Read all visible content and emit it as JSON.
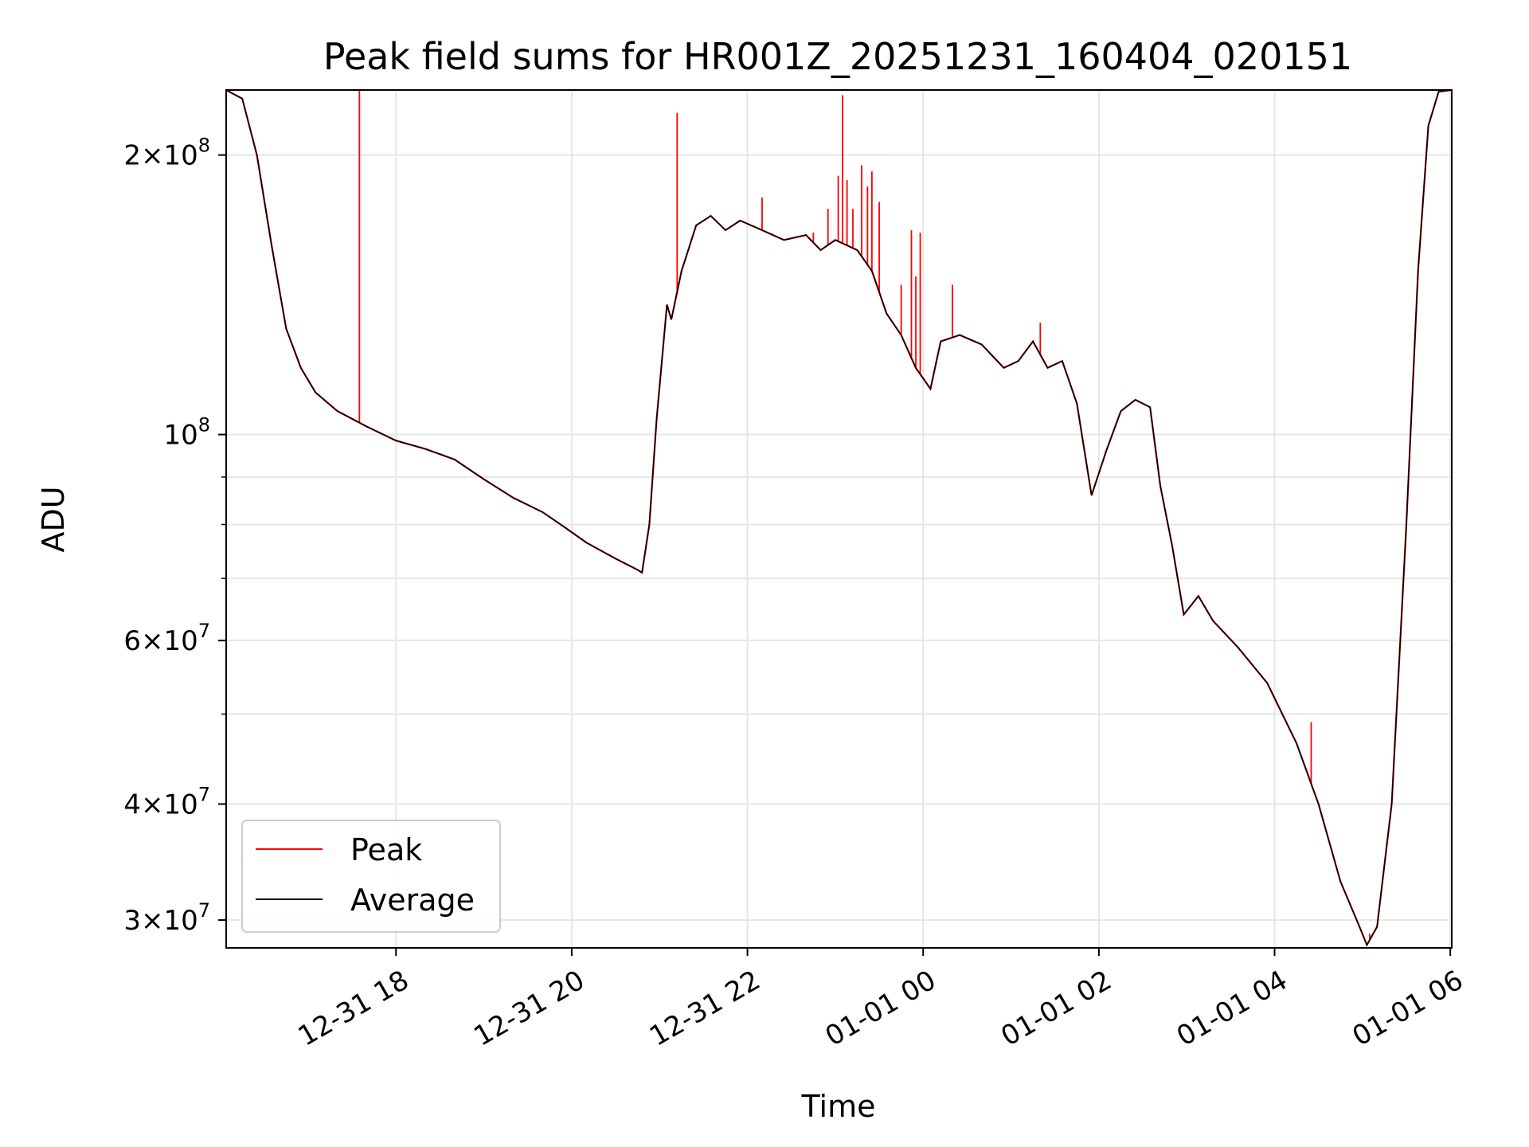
{
  "chart_data": {
    "type": "line",
    "title": "Peak field sums for HR001Z_20251231_160404_020151",
    "xlabel": "Time",
    "ylabel": "ADU",
    "y_scale": "log",
    "ylim": [
      28000000,
      235000000
    ],
    "xlim": [
      "2025-12-31 16:04",
      "2026-01-01 06:01"
    ],
    "grid": true,
    "legend_position": "lower-left",
    "x_ticks": [
      {
        "label": "12-31 18",
        "value": "2025-12-31 18:00"
      },
      {
        "label": "12-31 20",
        "value": "2025-12-31 20:00"
      },
      {
        "label": "12-31 22",
        "value": "2025-12-31 22:00"
      },
      {
        "label": "01-01 00",
        "value": "2026-01-01 00:00"
      },
      {
        "label": "01-01 02",
        "value": "2026-01-01 02:00"
      },
      {
        "label": "01-01 04",
        "value": "2026-01-01 04:00"
      },
      {
        "label": "01-01 06",
        "value": "2026-01-01 06:00"
      }
    ],
    "y_ticks": [
      {
        "base": "2",
        "exp": "8",
        "value": 200000000
      },
      {
        "base": "",
        "exp": "8",
        "value": 100000000
      },
      {
        "base": "6",
        "exp": "7",
        "value": 60000000
      },
      {
        "base": "4",
        "exp": "7",
        "value": 40000000
      },
      {
        "base": "3",
        "exp": "7",
        "value": 30000000
      }
    ],
    "y_minor_ticks": [
      90000000,
      80000000,
      70000000,
      50000000
    ],
    "series": [
      {
        "name": "Average",
        "color": "#000000",
        "points": [
          [
            "2025-12-31 16:04",
            235000000
          ],
          [
            "2025-12-31 16:15",
            230000000
          ],
          [
            "2025-12-31 16:25",
            200000000
          ],
          [
            "2025-12-31 16:35",
            160000000
          ],
          [
            "2025-12-31 16:45",
            130000000
          ],
          [
            "2025-12-31 16:55",
            118000000
          ],
          [
            "2025-12-31 17:05",
            111000000
          ],
          [
            "2025-12-31 17:20",
            106000000
          ],
          [
            "2025-12-31 17:40",
            102000000
          ],
          [
            "2025-12-31 18:00",
            98500000
          ],
          [
            "2025-12-31 18:20",
            96500000
          ],
          [
            "2025-12-31 18:40",
            94000000
          ],
          [
            "2025-12-31 19:00",
            89500000
          ],
          [
            "2025-12-31 19:20",
            85500000
          ],
          [
            "2025-12-31 19:40",
            82500000
          ],
          [
            "2025-12-31 19:55",
            79500000
          ],
          [
            "2025-12-31 20:10",
            76500000
          ],
          [
            "2025-12-31 20:30",
            73500000
          ],
          [
            "2025-12-31 20:45",
            71500000
          ],
          [
            "2025-12-31 20:48",
            71000000
          ],
          [
            "2025-12-31 20:53",
            80000000
          ],
          [
            "2025-12-31 20:58",
            104000000
          ],
          [
            "2025-12-31 21:05",
            138000000
          ],
          [
            "2025-12-31 21:08",
            133000000
          ],
          [
            "2025-12-31 21:15",
            150000000
          ],
          [
            "2025-12-31 21:25",
            168000000
          ],
          [
            "2025-12-31 21:35",
            172000000
          ],
          [
            "2025-12-31 21:45",
            166000000
          ],
          [
            "2025-12-31 21:55",
            170000000
          ],
          [
            "2025-12-31 22:10",
            166000000
          ],
          [
            "2025-12-31 22:25",
            162000000
          ],
          [
            "2025-12-31 22:40",
            164000000
          ],
          [
            "2025-12-31 22:50",
            158000000
          ],
          [
            "2025-12-31 23:00",
            162000000
          ],
          [
            "2025-12-31 23:15",
            158000000
          ],
          [
            "2025-12-31 23:25",
            150000000
          ],
          [
            "2025-12-31 23:35",
            135000000
          ],
          [
            "2025-12-31 23:45",
            128000000
          ],
          [
            "2025-12-31 23:55",
            118000000
          ],
          [
            "2026-01-01 00:05",
            112000000
          ],
          [
            "2026-01-01 00:12",
            126000000
          ],
          [
            "2026-01-01 00:25",
            128000000
          ],
          [
            "2026-01-01 00:40",
            125000000
          ],
          [
            "2026-01-01 00:55",
            118000000
          ],
          [
            "2026-01-01 01:05",
            120000000
          ],
          [
            "2026-01-01 01:15",
            126000000
          ],
          [
            "2026-01-01 01:25",
            118000000
          ],
          [
            "2026-01-01 01:35",
            120000000
          ],
          [
            "2026-01-01 01:45",
            108000000
          ],
          [
            "2026-01-01 01:55",
            86000000
          ],
          [
            "2026-01-01 02:05",
            96000000
          ],
          [
            "2026-01-01 02:15",
            106000000
          ],
          [
            "2026-01-01 02:25",
            109000000
          ],
          [
            "2026-01-01 02:35",
            107000000
          ],
          [
            "2026-01-01 02:42",
            88000000
          ],
          [
            "2026-01-01 02:50",
            76000000
          ],
          [
            "2026-01-01 02:58",
            64000000
          ],
          [
            "2026-01-01 03:08",
            67000000
          ],
          [
            "2026-01-01 03:18",
            63000000
          ],
          [
            "2026-01-01 03:35",
            59000000
          ],
          [
            "2026-01-01 03:55",
            54000000
          ],
          [
            "2026-01-01 04:15",
            46500000
          ],
          [
            "2026-01-01 04:30",
            40000000
          ],
          [
            "2026-01-01 04:45",
            33000000
          ],
          [
            "2026-01-01 04:58",
            29500000
          ],
          [
            "2026-01-01 05:03",
            28200000
          ],
          [
            "2026-01-01 05:10",
            29500000
          ],
          [
            "2026-01-01 05:20",
            40000000
          ],
          [
            "2026-01-01 05:30",
            80000000
          ],
          [
            "2026-01-01 05:38",
            150000000
          ],
          [
            "2026-01-01 05:45",
            215000000
          ],
          [
            "2026-01-01 05:52",
            234000000
          ],
          [
            "2026-01-01 06:01",
            235000000
          ]
        ]
      },
      {
        "name": "Peak",
        "color": "#ff0000",
        "spikes": [
          [
            "2025-12-31 17:35",
            235000000
          ],
          [
            "2025-12-31 21:12",
            222000000
          ],
          [
            "2025-12-31 22:10",
            180000000
          ],
          [
            "2025-12-31 22:45",
            165000000
          ],
          [
            "2025-12-31 22:55",
            175000000
          ],
          [
            "2025-12-31 23:02",
            190000000
          ],
          [
            "2025-12-31 23:05",
            232000000
          ],
          [
            "2025-12-31 23:08",
            188000000
          ],
          [
            "2025-12-31 23:12",
            175000000
          ],
          [
            "2025-12-31 23:18",
            195000000
          ],
          [
            "2025-12-31 23:22",
            185000000
          ],
          [
            "2025-12-31 23:25",
            192000000
          ],
          [
            "2025-12-31 23:30",
            178000000
          ],
          [
            "2025-12-31 23:45",
            145000000
          ],
          [
            "2025-12-31 23:52",
            166000000
          ],
          [
            "2025-12-31 23:55",
            148000000
          ],
          [
            "2025-12-31 23:58",
            165000000
          ],
          [
            "2026-01-01 00:20",
            145000000
          ],
          [
            "2026-01-01 01:20",
            132000000
          ],
          [
            "2026-01-01 04:25",
            49000000
          ],
          [
            "2026-01-01 05:05",
            29000000
          ]
        ]
      }
    ]
  }
}
